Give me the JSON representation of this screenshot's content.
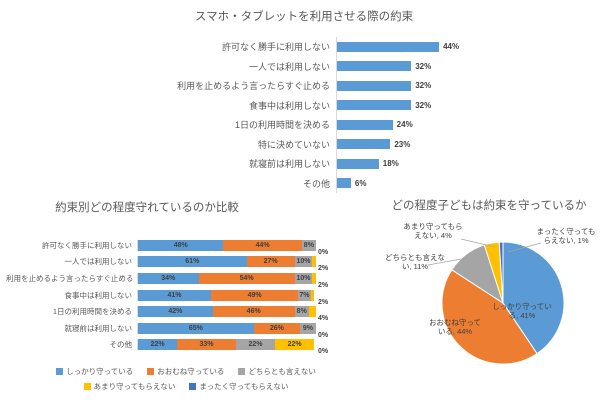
{
  "palette": {
    "blue": "#5B9BD5",
    "orange": "#ED7D31",
    "gray": "#A5A5A5",
    "yellow": "#FFC000",
    "navy": "#4472C4",
    "axis_line": "#d9d9d9",
    "text_gray": "#595959",
    "label_dark": "#404040"
  },
  "chart_data": [
    {
      "type": "bar",
      "orientation": "horizontal",
      "title": "スマホ・タブレットを利用させる際の約束",
      "categories": [
        "許可なく勝手に利用しない",
        "一人では利用しない",
        "利用を止めるよう言ったらすぐ止める",
        "食事中は利用しない",
        "1日の利用時間を決める",
        "特に決めていない",
        "就寝前は利用しない",
        "その他"
      ],
      "values": [
        44,
        32,
        32,
        32,
        24,
        23,
        18,
        6
      ],
      "value_labels": [
        "44%",
        "32%",
        "32%",
        "32%",
        "24%",
        "23%",
        "18%",
        "6%"
      ],
      "bar_color": "#5B9BD5",
      "xlim": [
        0,
        50
      ],
      "grid": false
    },
    {
      "type": "stacked-bar",
      "orientation": "horizontal",
      "title": "約束別どの程度守れているのか比較",
      "categories": [
        "許可なく勝手に利用しない",
        "一人では利用しない",
        "利用を止めるよう言ったらすぐ止める",
        "食事中は利用しない",
        "1日の利用時間を決める",
        "就寝前は利用しない",
        "その他"
      ],
      "series": [
        {
          "name": "しっかり守っている",
          "color": "#5B9BD5",
          "values": [
            48,
            61,
            34,
            41,
            42,
            65,
            22
          ]
        },
        {
          "name": "おおむね守っている",
          "color": "#ED7D31",
          "values": [
            44,
            27,
            54,
            49,
            46,
            26,
            33
          ]
        },
        {
          "name": "どちらとも言えない",
          "color": "#A5A5A5",
          "values": [
            8,
            10,
            10,
            7,
            8,
            9,
            22
          ]
        },
        {
          "name": "あまり守ってもらえない",
          "color": "#FFC000",
          "values": [
            0,
            2,
            2,
            2,
            4,
            0,
            22
          ]
        },
        {
          "name": "まったく守ってもらえない",
          "color": "#4472C4",
          "values": [
            0,
            0,
            0,
            0,
            0,
            0,
            0
          ]
        }
      ],
      "overflow_labels": [
        "0%",
        "2%",
        "2%",
        "2%",
        "4%",
        "0%",
        "0%"
      ],
      "xlim": [
        0,
        100
      ],
      "legend_position": "bottom"
    },
    {
      "type": "pie",
      "title": "どの程度子どもは約束を守っているか",
      "slices": [
        {
          "name": "しっかり守っている",
          "value": 41,
          "color": "#5B9BD5",
          "label_lines": [
            "しっかり守ってい",
            "る, 41%"
          ],
          "placement": "inside"
        },
        {
          "name": "おおむね守っている",
          "value": 44,
          "color": "#ED7D31",
          "label_lines": [
            "おおむね守って",
            "いる, 44%"
          ],
          "placement": "inside"
        },
        {
          "name": "どちらとも言えない",
          "value": 11,
          "color": "#A5A5A5",
          "label_lines": [
            "どちらとも言えな",
            "い, 11%"
          ],
          "placement": "outside"
        },
        {
          "name": "あまり守ってもらえない",
          "value": 4,
          "color": "#FFC000",
          "label_lines": [
            "あまり守ってもら",
            "えない, 4%"
          ],
          "placement": "outside"
        },
        {
          "name": "まったく守ってもらえない",
          "value": 1,
          "color": "#4472C4",
          "label_lines": [
            "まったく守っても",
            "らえない, 1%"
          ],
          "placement": "outside"
        }
      ]
    }
  ]
}
